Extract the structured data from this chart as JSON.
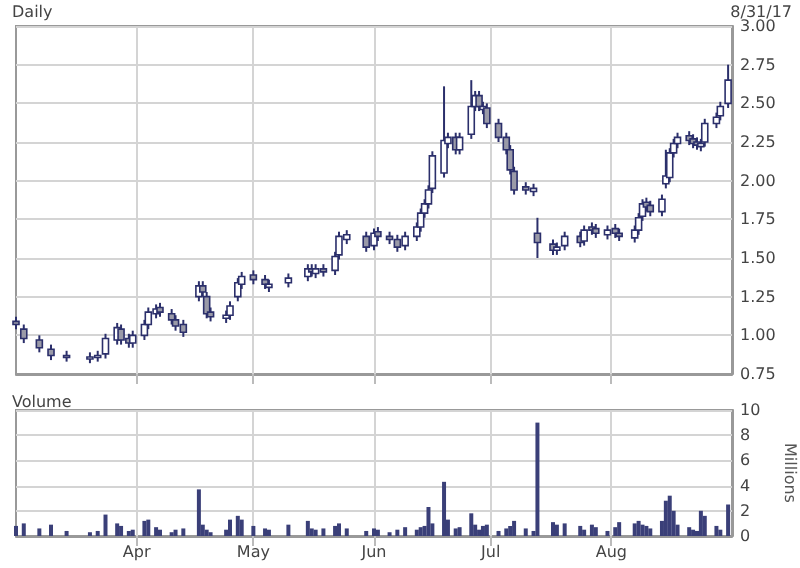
{
  "chart_data": [
    {
      "type": "candlestick",
      "title": "Daily",
      "annotations": [
        "8/31/17"
      ],
      "color": "#2b2f6b",
      "grid": true,
      "tick_labels": "y",
      "x": [
        "--03-01",
        "--03-03",
        "--03-07",
        "--03-10",
        "--03-14",
        "--03-20",
        "--03-22",
        "--03-24",
        "--03-27",
        "--03-28",
        "--03-30",
        "--03-31",
        "--04-03",
        "--04-04",
        "--04-06",
        "--04-07",
        "--04-10",
        "--04-11",
        "--04-13",
        "--04-17",
        "--04-18",
        "--04-19",
        "--04-20",
        "--04-24",
        "--04-25",
        "--04-27",
        "--04-28",
        "--05-01",
        "--05-04",
        "--05-05",
        "--05-10",
        "--05-15",
        "--05-16",
        "--05-17",
        "--05-19",
        "--05-22",
        "--05-23",
        "--05-25",
        "--05-30",
        "--06-01",
        "--06-02",
        "--06-05",
        "--06-07",
        "--06-09",
        "--06-12",
        "--06-13",
        "--06-14",
        "--06-15",
        "--06-16",
        "--06-19",
        "--06-20",
        "--06-22",
        "--06-23",
        "--06-26",
        "--06-27",
        "--06-28",
        "--06-29",
        "--06-30",
        "--07-03",
        "--07-05",
        "--07-06",
        "--07-07",
        "--07-10",
        "--07-12",
        "--07-13",
        "--07-17",
        "--07-18",
        "--07-20",
        "--07-24",
        "--07-25",
        "--07-27",
        "--07-28",
        "--07-31",
        "--08-02",
        "--08-03",
        "--08-07",
        "--08-08",
        "--08-09",
        "--08-10",
        "--08-11",
        "--08-14",
        "--08-15",
        "--08-16",
        "--08-17",
        "--08-18",
        "--08-21",
        "--08-22",
        "--08-23",
        "--08-24",
        "--08-25",
        "--08-28",
        "--08-29",
        "--08-31"
      ],
      "ohlc": [
        [
          1.09,
          1.12,
          1.04,
          1.07
        ],
        [
          1.04,
          1.07,
          0.95,
          0.98
        ],
        [
          0.97,
          1.0,
          0.89,
          0.92
        ],
        [
          0.91,
          0.94,
          0.84,
          0.87
        ],
        [
          0.87,
          0.9,
          0.83,
          0.86
        ],
        [
          0.85,
          0.89,
          0.82,
          0.86
        ],
        [
          0.86,
          0.9,
          0.83,
          0.87
        ],
        [
          0.88,
          1.01,
          0.85,
          0.98
        ],
        [
          0.97,
          1.08,
          0.94,
          1.05
        ],
        [
          1.04,
          1.07,
          0.94,
          0.97
        ],
        [
          0.98,
          1.01,
          0.92,
          0.95
        ],
        [
          0.95,
          1.03,
          0.92,
          1.0
        ],
        [
          1.0,
          1.1,
          0.97,
          1.07
        ],
        [
          1.07,
          1.18,
          1.04,
          1.15
        ],
        [
          1.14,
          1.2,
          1.11,
          1.17
        ],
        [
          1.18,
          1.21,
          1.12,
          1.15
        ],
        [
          1.14,
          1.17,
          1.07,
          1.1
        ],
        [
          1.1,
          1.13,
          1.03,
          1.06
        ],
        [
          1.07,
          1.1,
          0.99,
          1.02
        ],
        [
          1.25,
          1.35,
          1.22,
          1.32
        ],
        [
          1.32,
          1.35,
          1.25,
          1.28
        ],
        [
          1.25,
          1.28,
          1.11,
          1.14
        ],
        [
          1.15,
          1.18,
          1.09,
          1.12
        ],
        [
          1.11,
          1.16,
          1.08,
          1.13
        ],
        [
          1.13,
          1.22,
          1.1,
          1.19
        ],
        [
          1.25,
          1.37,
          1.22,
          1.34
        ],
        [
          1.33,
          1.41,
          1.3,
          1.38
        ],
        [
          1.39,
          1.42,
          1.33,
          1.36
        ],
        [
          1.36,
          1.39,
          1.3,
          1.33
        ],
        [
          1.31,
          1.36,
          1.28,
          1.33
        ],
        [
          1.34,
          1.4,
          1.31,
          1.37
        ],
        [
          1.38,
          1.46,
          1.35,
          1.43
        ],
        [
          1.43,
          1.46,
          1.38,
          1.41
        ],
        [
          1.4,
          1.46,
          1.37,
          1.43
        ],
        [
          1.43,
          1.46,
          1.38,
          1.41
        ],
        [
          1.42,
          1.54,
          1.39,
          1.51
        ],
        [
          1.52,
          1.67,
          1.49,
          1.64
        ],
        [
          1.62,
          1.68,
          1.59,
          1.65
        ],
        [
          1.64,
          1.67,
          1.54,
          1.57
        ],
        [
          1.58,
          1.69,
          1.55,
          1.66
        ],
        [
          1.67,
          1.7,
          1.61,
          1.64
        ],
        [
          1.64,
          1.67,
          1.59,
          1.62
        ],
        [
          1.62,
          1.65,
          1.54,
          1.57
        ],
        [
          1.58,
          1.67,
          1.55,
          1.64
        ],
        [
          1.64,
          1.73,
          1.61,
          1.7
        ],
        [
          1.7,
          1.82,
          1.67,
          1.79
        ],
        [
          1.79,
          1.88,
          1.76,
          1.85
        ],
        [
          1.85,
          1.97,
          1.82,
          1.94
        ],
        [
          1.95,
          2.19,
          1.92,
          2.16
        ],
        [
          2.05,
          2.61,
          2.02,
          2.26
        ],
        [
          2.24,
          2.31,
          2.21,
          2.28
        ],
        [
          2.28,
          2.31,
          2.17,
          2.2
        ],
        [
          2.2,
          2.31,
          2.17,
          2.28
        ],
        [
          2.3,
          2.65,
          2.27,
          2.48
        ],
        [
          2.48,
          2.58,
          2.45,
          2.55
        ],
        [
          2.55,
          2.58,
          2.45,
          2.48
        ],
        [
          2.46,
          2.51,
          2.43,
          2.48
        ],
        [
          2.47,
          2.5,
          2.34,
          2.37
        ],
        [
          2.37,
          2.4,
          2.25,
          2.28
        ],
        [
          2.28,
          2.31,
          2.17,
          2.2
        ],
        [
          2.2,
          2.23,
          2.04,
          2.07
        ],
        [
          2.06,
          2.09,
          1.91,
          1.94
        ],
        [
          1.96,
          1.99,
          1.91,
          1.94
        ],
        [
          1.93,
          1.98,
          1.9,
          1.95
        ],
        [
          1.66,
          1.76,
          1.5,
          1.6
        ],
        [
          1.59,
          1.62,
          1.52,
          1.55
        ],
        [
          1.55,
          1.6,
          1.52,
          1.57
        ],
        [
          1.58,
          1.67,
          1.55,
          1.64
        ],
        [
          1.64,
          1.67,
          1.57,
          1.6
        ],
        [
          1.61,
          1.71,
          1.58,
          1.68
        ],
        [
          1.7,
          1.73,
          1.65,
          1.68
        ],
        [
          1.69,
          1.72,
          1.63,
          1.66
        ],
        [
          1.65,
          1.71,
          1.62,
          1.68
        ],
        [
          1.69,
          1.72,
          1.63,
          1.66
        ],
        [
          1.66,
          1.69,
          1.61,
          1.64
        ],
        [
          1.63,
          1.71,
          1.6,
          1.68
        ],
        [
          1.68,
          1.79,
          1.65,
          1.76
        ],
        [
          1.77,
          1.88,
          1.74,
          1.85
        ],
        [
          1.86,
          1.89,
          1.8,
          1.83
        ],
        [
          1.84,
          1.87,
          1.77,
          1.8
        ],
        [
          1.8,
          1.91,
          1.77,
          1.88
        ],
        [
          1.98,
          2.2,
          1.95,
          2.03
        ],
        [
          2.02,
          2.21,
          1.99,
          2.18
        ],
        [
          2.18,
          2.27,
          2.15,
          2.24
        ],
        [
          2.24,
          2.31,
          2.21,
          2.28
        ],
        [
          2.29,
          2.32,
          2.23,
          2.26
        ],
        [
          2.27,
          2.3,
          2.21,
          2.24
        ],
        [
          2.25,
          2.28,
          2.2,
          2.23
        ],
        [
          2.22,
          2.27,
          2.19,
          2.24
        ],
        [
          2.25,
          2.4,
          2.22,
          2.37
        ],
        [
          2.37,
          2.44,
          2.34,
          2.41
        ],
        [
          2.42,
          2.51,
          2.39,
          2.48
        ],
        [
          2.5,
          2.75,
          2.47,
          2.65
        ]
      ],
      "xlim": [
        "--03-01",
        "--09-01"
      ],
      "xticks": [
        {
          "value": "--04-01",
          "label": null
        },
        {
          "value": "--05-01",
          "label": null
        },
        {
          "value": "--06-01",
          "label": null
        },
        {
          "value": "--07-01",
          "label": null
        },
        {
          "value": "--08-01",
          "label": null
        }
      ],
      "ylim": [
        0.75,
        3.0
      ],
      "yticks": [
        {
          "value": 0.75,
          "label": "0.75"
        },
        {
          "value": 1,
          "label": "1.00"
        },
        {
          "value": 1.25,
          "label": "1.25"
        },
        {
          "value": 1.5,
          "label": "1.50"
        },
        {
          "value": 1.75,
          "label": "1.75"
        },
        {
          "value": 2,
          "label": "2.00"
        },
        {
          "value": 2.25,
          "label": "2.25"
        },
        {
          "value": 2.5,
          "label": "2.50"
        },
        {
          "value": 2.75,
          "label": "2.75"
        },
        {
          "value": 3,
          "label": "3.00"
        }
      ]
    },
    {
      "type": "bar",
      "title": "Volume",
      "ylabel": "Millions",
      "color": "#3a3f78",
      "grid": true,
      "x": [
        "--03-01",
        "--03-03",
        "--03-07",
        "--03-10",
        "--03-14",
        "--03-20",
        "--03-22",
        "--03-24",
        "--03-27",
        "--03-28",
        "--03-30",
        "--03-31",
        "--04-03",
        "--04-04",
        "--04-06",
        "--04-07",
        "--04-10",
        "--04-11",
        "--04-13",
        "--04-17",
        "--04-18",
        "--04-19",
        "--04-20",
        "--04-24",
        "--04-25",
        "--04-27",
        "--04-28",
        "--05-01",
        "--05-04",
        "--05-05",
        "--05-10",
        "--05-15",
        "--05-16",
        "--05-17",
        "--05-19",
        "--05-22",
        "--05-23",
        "--05-25",
        "--05-30",
        "--06-01",
        "--06-02",
        "--06-05",
        "--06-07",
        "--06-09",
        "--06-12",
        "--06-13",
        "--06-14",
        "--06-15",
        "--06-16",
        "--06-19",
        "--06-20",
        "--06-22",
        "--06-23",
        "--06-26",
        "--06-27",
        "--06-28",
        "--06-29",
        "--06-30",
        "--07-03",
        "--07-05",
        "--07-06",
        "--07-07",
        "--07-10",
        "--07-12",
        "--07-13",
        "--07-17",
        "--07-18",
        "--07-20",
        "--07-24",
        "--07-25",
        "--07-27",
        "--07-28",
        "--07-31",
        "--08-02",
        "--08-03",
        "--08-07",
        "--08-08",
        "--08-09",
        "--08-10",
        "--08-11",
        "--08-14",
        "--08-15",
        "--08-16",
        "--08-17",
        "--08-18",
        "--08-21",
        "--08-22",
        "--08-23",
        "--08-24",
        "--08-25",
        "--08-28",
        "--08-29",
        "--08-31"
      ],
      "values": [
        0.8,
        1.0,
        0.6,
        0.9,
        0.4,
        0.3,
        0.4,
        1.7,
        1.0,
        0.8,
        0.4,
        0.5,
        1.2,
        1.3,
        0.7,
        0.5,
        0.3,
        0.5,
        0.6,
        3.7,
        0.9,
        0.5,
        0.3,
        0.5,
        1.3,
        1.6,
        1.3,
        0.8,
        0.6,
        0.5,
        0.9,
        1.2,
        0.6,
        0.5,
        0.6,
        0.8,
        1.0,
        0.6,
        0.4,
        0.6,
        0.5,
        0.3,
        0.5,
        0.7,
        0.5,
        0.7,
        0.8,
        2.3,
        1.0,
        4.3,
        1.3,
        0.6,
        0.7,
        1.8,
        0.9,
        0.5,
        0.8,
        0.9,
        0.4,
        0.6,
        0.8,
        1.2,
        0.6,
        0.4,
        9.0,
        1.1,
        0.9,
        1.0,
        0.8,
        0.5,
        0.9,
        0.7,
        0.4,
        0.7,
        1.1,
        1.0,
        1.2,
        0.9,
        0.8,
        0.6,
        1.2,
        2.8,
        3.2,
        2.0,
        0.9,
        0.7,
        0.5,
        0.4,
        2.0,
        1.6,
        0.8,
        0.5,
        2.5
      ],
      "xlim": [
        "--03-01",
        "--09-01"
      ],
      "xticks": [
        {
          "value": "--04-01",
          "label": "Apr"
        },
        {
          "value": "--05-01",
          "label": "May"
        },
        {
          "value": "--06-01",
          "label": "Jun"
        },
        {
          "value": "--07-01",
          "label": "Jul"
        },
        {
          "value": "--08-01",
          "label": "Aug"
        }
      ],
      "ylim": [
        0,
        10
      ],
      "yticks": [
        0,
        2,
        4,
        6,
        8,
        10
      ]
    }
  ]
}
